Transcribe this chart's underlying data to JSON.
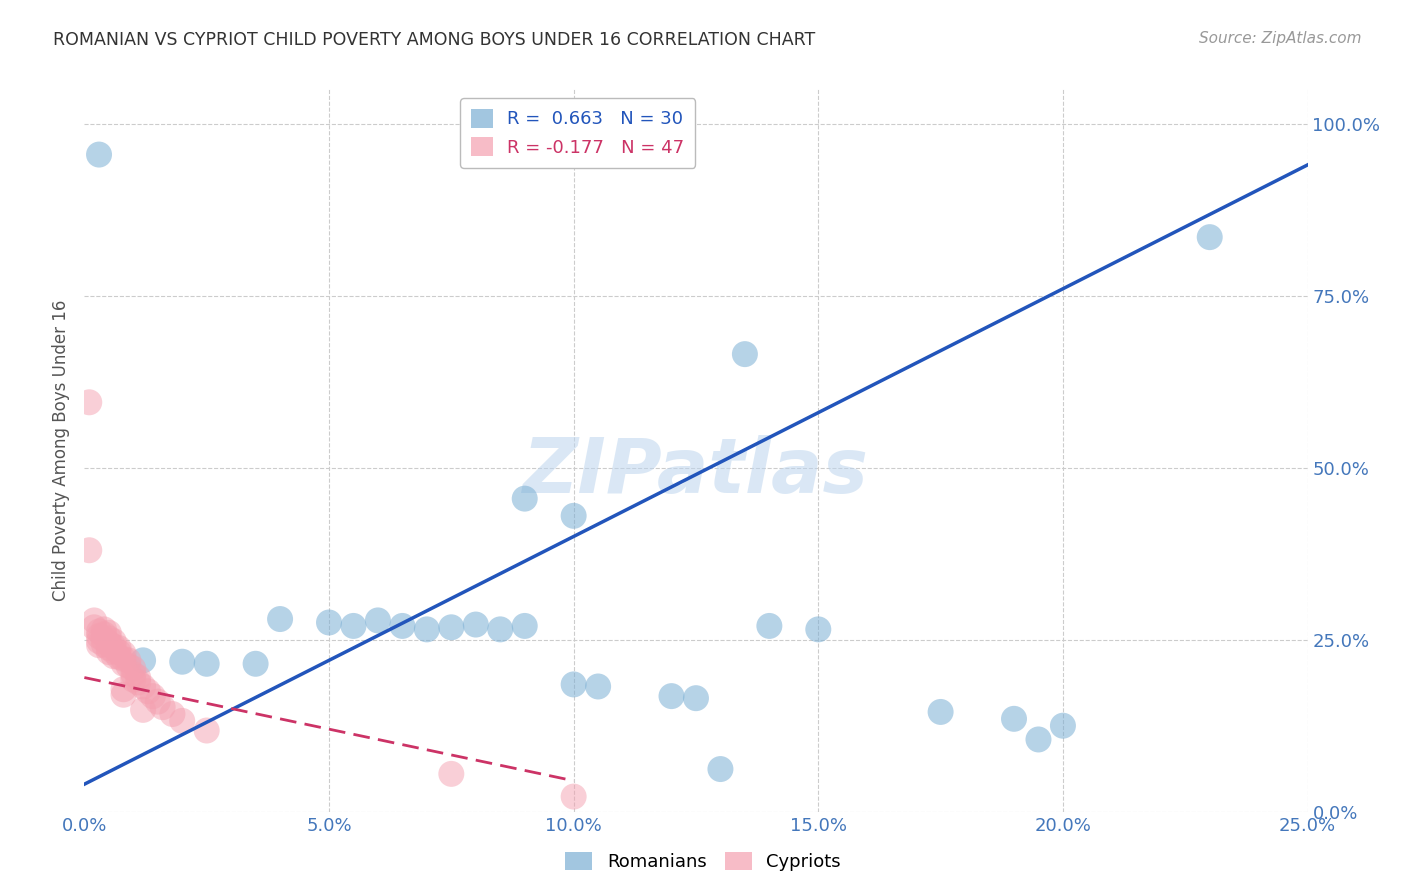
{
  "title": "ROMANIAN VS CYPRIOT CHILD POVERTY AMONG BOYS UNDER 16 CORRELATION CHART",
  "source": "Source: ZipAtlas.com",
  "ylabel": "Child Poverty Among Boys Under 16",
  "watermark": "ZIPatlas",
  "xlim": [
    0.0,
    0.25
  ],
  "ylim": [
    0.0,
    1.05
  ],
  "xticks": [
    0.0,
    0.05,
    0.1,
    0.15,
    0.2,
    0.25
  ],
  "yticks": [
    0.0,
    0.25,
    0.5,
    0.75,
    1.0
  ],
  "romanian_R": 0.663,
  "romanian_N": 30,
  "cypriot_R": -0.177,
  "cypriot_N": 47,
  "romanian_color": "#7BAFD4",
  "cypriot_color": "#F4A0B0",
  "romanian_line_color": "#2255BB",
  "cypriot_line_color": "#CC3366",
  "background_color": "#FFFFFF",
  "grid_color": "#CCCCCC",
  "axis_color": "#4477BB",
  "romanian_line": [
    [
      0.0,
      0.04
    ],
    [
      0.25,
      0.94
    ]
  ],
  "cypriot_line": [
    [
      0.0,
      0.195
    ],
    [
      0.1,
      0.045
    ]
  ],
  "romanian_points": [
    [
      0.003,
      0.955
    ],
    [
      0.23,
      0.835
    ],
    [
      0.135,
      0.665
    ],
    [
      0.09,
      0.455
    ],
    [
      0.1,
      0.43
    ],
    [
      0.04,
      0.28
    ],
    [
      0.05,
      0.275
    ],
    [
      0.055,
      0.27
    ],
    [
      0.06,
      0.278
    ],
    [
      0.065,
      0.27
    ],
    [
      0.07,
      0.265
    ],
    [
      0.075,
      0.268
    ],
    [
      0.08,
      0.272
    ],
    [
      0.085,
      0.265
    ],
    [
      0.09,
      0.27
    ],
    [
      0.012,
      0.22
    ],
    [
      0.02,
      0.218
    ],
    [
      0.025,
      0.215
    ],
    [
      0.035,
      0.215
    ],
    [
      0.14,
      0.27
    ],
    [
      0.15,
      0.265
    ],
    [
      0.1,
      0.185
    ],
    [
      0.105,
      0.182
    ],
    [
      0.12,
      0.168
    ],
    [
      0.125,
      0.165
    ],
    [
      0.175,
      0.145
    ],
    [
      0.19,
      0.135
    ],
    [
      0.2,
      0.125
    ],
    [
      0.195,
      0.105
    ],
    [
      0.13,
      0.062
    ]
  ],
  "cypriot_points": [
    [
      0.001,
      0.595
    ],
    [
      0.001,
      0.38
    ],
    [
      0.002,
      0.278
    ],
    [
      0.002,
      0.268
    ],
    [
      0.003,
      0.262
    ],
    [
      0.003,
      0.255
    ],
    [
      0.003,
      0.248
    ],
    [
      0.003,
      0.242
    ],
    [
      0.004,
      0.265
    ],
    [
      0.004,
      0.258
    ],
    [
      0.004,
      0.25
    ],
    [
      0.004,
      0.243
    ],
    [
      0.005,
      0.26
    ],
    [
      0.005,
      0.252
    ],
    [
      0.005,
      0.245
    ],
    [
      0.005,
      0.238
    ],
    [
      0.005,
      0.232
    ],
    [
      0.006,
      0.248
    ],
    [
      0.006,
      0.24
    ],
    [
      0.006,
      0.233
    ],
    [
      0.006,
      0.226
    ],
    [
      0.007,
      0.238
    ],
    [
      0.007,
      0.232
    ],
    [
      0.007,
      0.225
    ],
    [
      0.008,
      0.23
    ],
    [
      0.008,
      0.222
    ],
    [
      0.008,
      0.215
    ],
    [
      0.009,
      0.22
    ],
    [
      0.009,
      0.212
    ],
    [
      0.01,
      0.208
    ],
    [
      0.01,
      0.2
    ],
    [
      0.01,
      0.192
    ],
    [
      0.011,
      0.195
    ],
    [
      0.011,
      0.188
    ],
    [
      0.012,
      0.182
    ],
    [
      0.013,
      0.175
    ],
    [
      0.014,
      0.168
    ],
    [
      0.015,
      0.16
    ],
    [
      0.016,
      0.152
    ],
    [
      0.018,
      0.142
    ],
    [
      0.02,
      0.132
    ],
    [
      0.025,
      0.118
    ],
    [
      0.008,
      0.178
    ],
    [
      0.008,
      0.17
    ],
    [
      0.012,
      0.148
    ],
    [
      0.075,
      0.055
    ],
    [
      0.1,
      0.022
    ]
  ]
}
